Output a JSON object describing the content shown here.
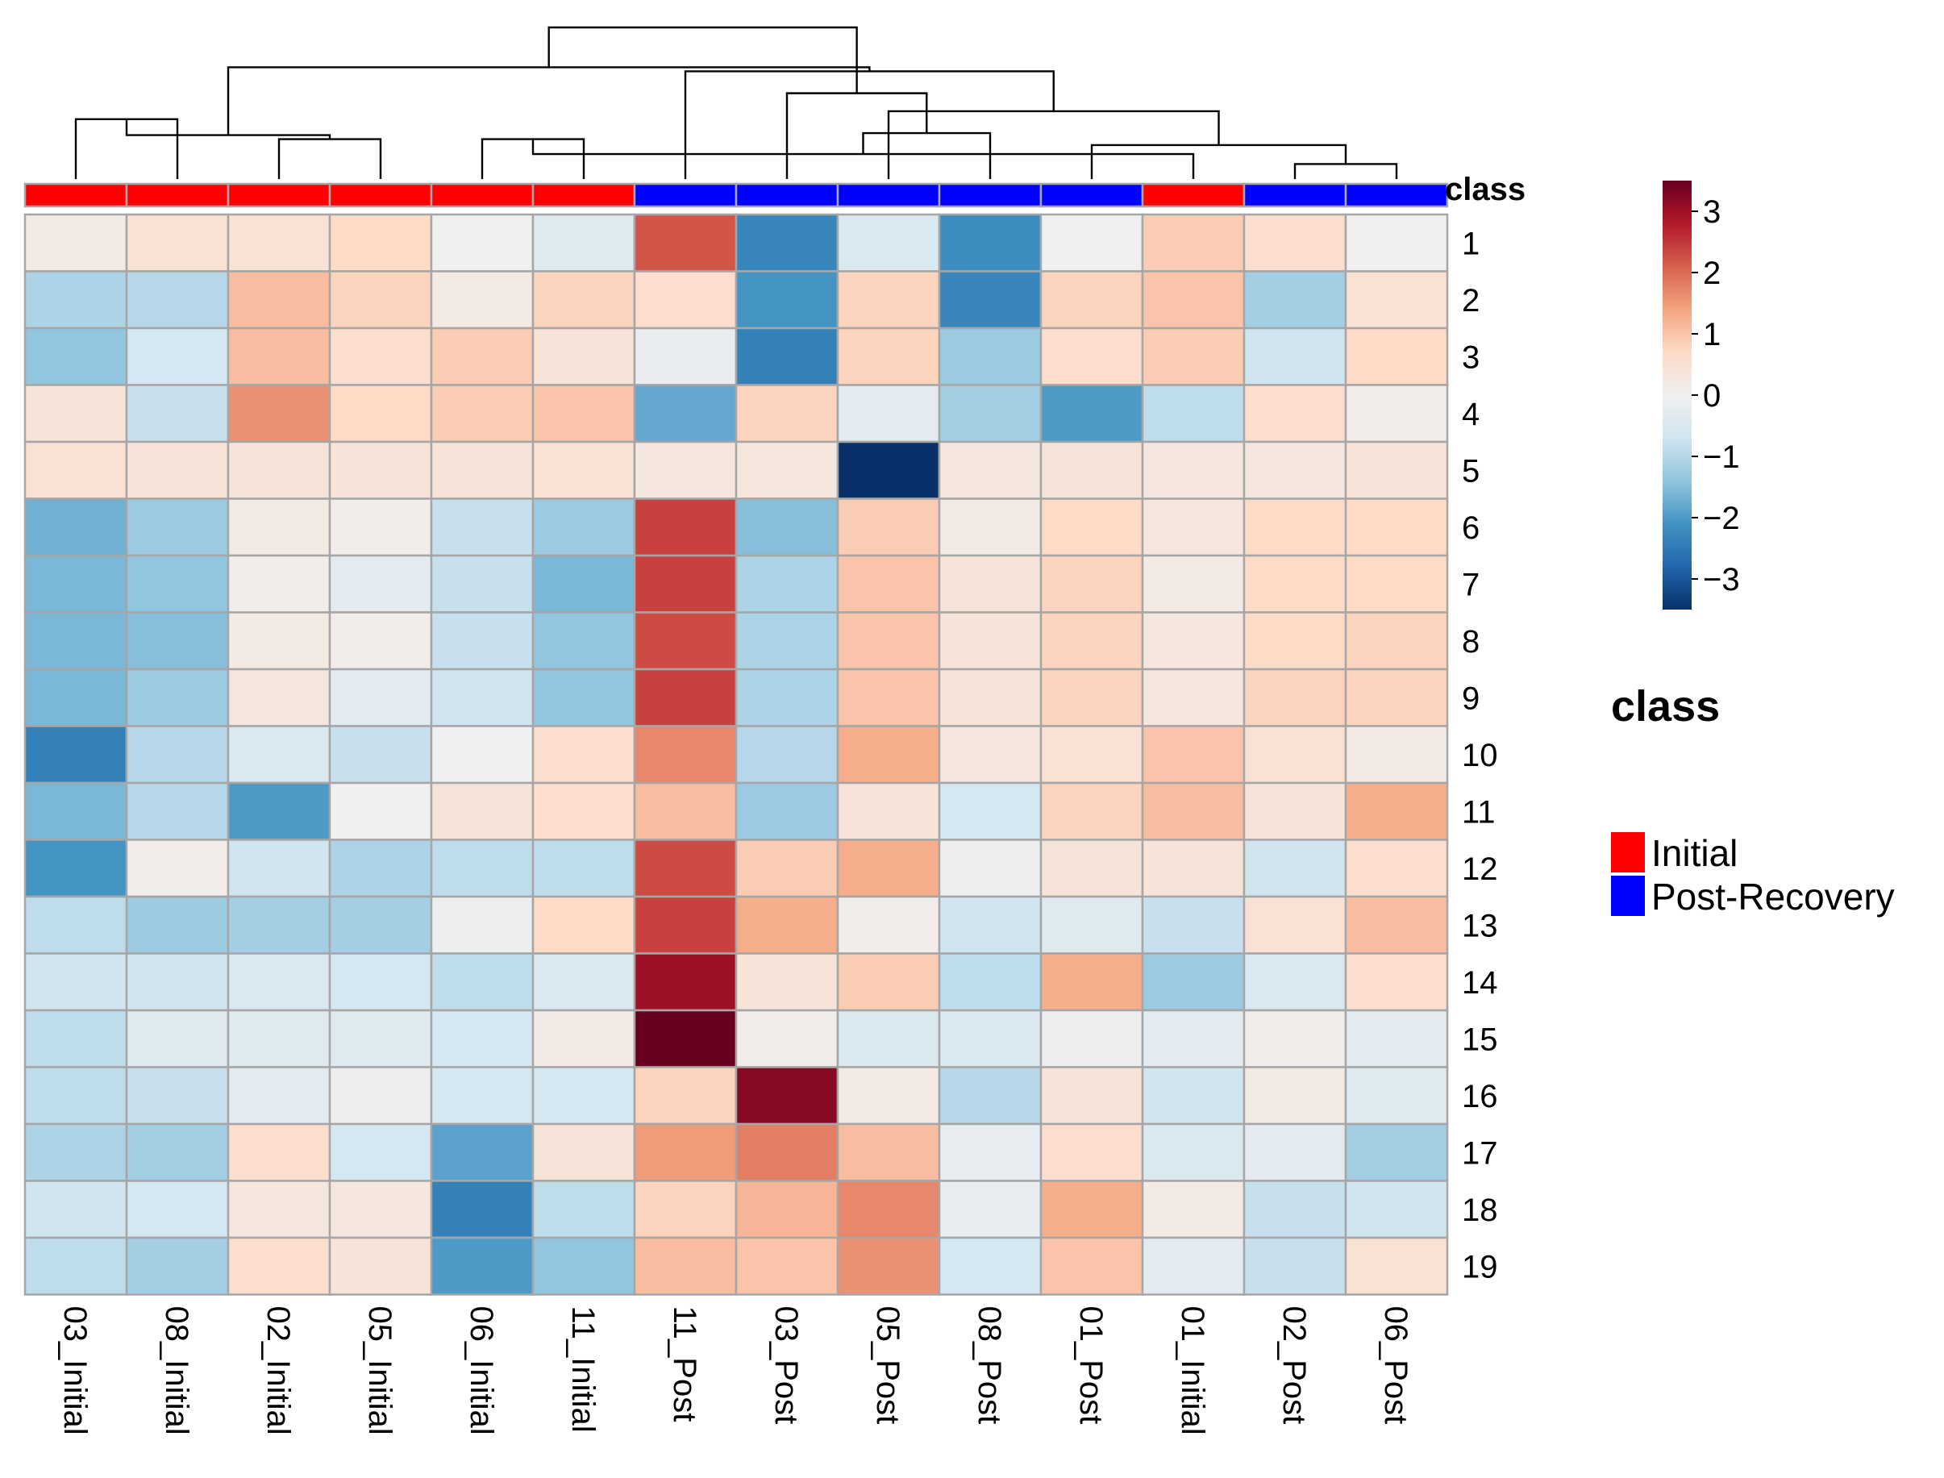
{
  "chart_data": {
    "type": "heatmap",
    "title": "",
    "xlabel": "",
    "ylabel": "",
    "columns": [
      "03_Initial",
      "08_Initial",
      "02_Initial",
      "05_Initial",
      "06_Initial",
      "11_Initial",
      "11_Post",
      "03_Post",
      "05_Post",
      "08_Post",
      "01_Post",
      "01_Initial",
      "02_Post",
      "06_Post"
    ],
    "rows": [
      "1",
      "2",
      "3",
      "4",
      "5",
      "6",
      "7",
      "8",
      "9",
      "10",
      "11",
      "12",
      "13",
      "14",
      "15",
      "16",
      "17",
      "18",
      "19"
    ],
    "column_classes": [
      "Initial",
      "Initial",
      "Initial",
      "Initial",
      "Initial",
      "Initial",
      "Post-Recovery",
      "Post-Recovery",
      "Post-Recovery",
      "Post-Recovery",
      "Post-Recovery",
      "Initial",
      "Post-Recovery",
      "Post-Recovery"
    ],
    "values": [
      [
        0.2,
        0.5,
        0.5,
        0.7,
        0.0,
        -0.4,
        2.2,
        -2.3,
        -0.5,
        -2.2,
        0.0,
        0.9,
        0.6,
        0.0
      ],
      [
        -1.1,
        -1.0,
        1.1,
        0.8,
        0.2,
        0.8,
        0.6,
        -2.1,
        0.8,
        -2.3,
        0.8,
        1.0,
        -1.2,
        0.5
      ],
      [
        -1.4,
        -0.6,
        1.1,
        0.6,
        0.9,
        0.4,
        -0.2,
        -2.4,
        0.8,
        -1.3,
        0.6,
        0.9,
        -0.7,
        0.7
      ],
      [
        0.4,
        -0.8,
        1.6,
        0.7,
        0.9,
        1.0,
        -1.8,
        0.8,
        -0.3,
        -1.2,
        -2.0,
        -0.9,
        0.6,
        0.1
      ],
      [
        0.5,
        0.4,
        0.4,
        0.4,
        0.4,
        0.5,
        0.3,
        0.3,
        -3.5,
        0.3,
        0.4,
        0.3,
        0.3,
        0.4
      ],
      [
        -1.7,
        -1.3,
        0.2,
        0.1,
        -0.8,
        -1.3,
        2.4,
        -1.5,
        0.9,
        0.2,
        0.7,
        0.3,
        0.7,
        0.7
      ],
      [
        -1.6,
        -1.4,
        0.1,
        -0.3,
        -0.8,
        -1.6,
        2.4,
        -1.1,
        1.0,
        0.4,
        0.8,
        0.2,
        0.7,
        0.7
      ],
      [
        -1.6,
        -1.5,
        0.2,
        0.1,
        -0.8,
        -1.4,
        2.3,
        -1.1,
        1.0,
        0.4,
        0.8,
        0.3,
        0.7,
        0.8
      ],
      [
        -1.6,
        -1.3,
        0.3,
        -0.3,
        -0.7,
        -1.4,
        2.4,
        -1.1,
        1.0,
        0.4,
        0.8,
        0.3,
        0.8,
        0.8
      ],
      [
        -2.4,
        -1.0,
        -0.5,
        -0.8,
        0.0,
        0.6,
        1.7,
        -1.0,
        1.3,
        0.3,
        0.5,
        1.0,
        0.5,
        0.2
      ],
      [
        -1.6,
        -1.0,
        -2.0,
        0.0,
        0.4,
        0.6,
        1.1,
        -1.3,
        0.4,
        -0.6,
        0.8,
        1.1,
        0.4,
        1.3
      ],
      [
        -2.1,
        0.1,
        -0.7,
        -1.1,
        -0.9,
        -0.9,
        2.3,
        0.9,
        1.3,
        -0.1,
        0.4,
        0.4,
        -0.7,
        0.6
      ],
      [
        -0.9,
        -1.3,
        -1.2,
        -1.2,
        -0.1,
        0.7,
        2.4,
        1.3,
        0.1,
        -0.7,
        -0.4,
        -0.8,
        0.5,
        1.1
      ],
      [
        -0.7,
        -0.7,
        -0.5,
        -0.6,
        -0.9,
        -0.5,
        3.0,
        0.4,
        0.9,
        -0.9,
        1.3,
        -1.3,
        -0.5,
        0.6
      ],
      [
        -0.9,
        -0.4,
        -0.4,
        -0.4,
        -0.6,
        0.2,
        3.5,
        0.1,
        -0.5,
        -0.5,
        -0.1,
        -0.3,
        0.1,
        -0.3
      ],
      [
        -0.9,
        -0.8,
        -0.3,
        -0.1,
        -0.6,
        -0.6,
        0.8,
        3.2,
        0.2,
        -1.0,
        0.4,
        -0.7,
        0.2,
        -0.4
      ],
      [
        -1.1,
        -1.2,
        0.6,
        -0.6,
        -1.9,
        0.4,
        1.5,
        1.8,
        1.1,
        -0.2,
        0.6,
        -0.5,
        -0.3,
        -1.2
      ],
      [
        -0.7,
        -0.6,
        0.3,
        0.3,
        -2.4,
        -0.9,
        0.8,
        1.2,
        1.7,
        -0.2,
        1.3,
        0.2,
        -0.8,
        -0.7
      ],
      [
        -0.9,
        -1.2,
        0.6,
        0.4,
        -2.0,
        -1.4,
        1.1,
        1.0,
        1.6,
        -0.6,
        1.0,
        -0.3,
        -0.8,
        0.5
      ]
    ],
    "color_scale": {
      "min": -3.5,
      "max": 3.5,
      "ticks": [
        -3,
        -2,
        -1,
        0,
        1,
        2,
        3
      ],
      "tick_labels": [
        "−3",
        "−2",
        "−1",
        "0",
        "1",
        "2",
        "3"
      ],
      "stops": [
        "#08306b",
        "#2166ac",
        "#4393c3",
        "#92c5de",
        "#d1e5f0",
        "#f0f0f0",
        "#fddbc7",
        "#f4a582",
        "#d6604d",
        "#b2182b",
        "#67001f"
      ]
    },
    "class_bar": {
      "label": "class"
    },
    "legend": {
      "title": "class",
      "position": "right",
      "entries": [
        {
          "label": "Initial",
          "color": "#ff0000"
        },
        {
          "label": "Post-Recovery",
          "color": "#0000ff"
        }
      ]
    },
    "dendrogram": {
      "merges": [
        [
          0,
          1
        ],
        [
          2,
          3
        ],
        [
          4,
          5
        ],
        [
          12,
          13
        ],
        [
          11,
          16
        ],
        [
          10,
          17
        ],
        [
          9,
          18
        ],
        [
          8,
          19
        ],
        [
          7,
          20
        ],
        [
          6,
          21
        ],
        [
          15,
          14
        ],
        [
          24,
          23
        ],
        [
          22,
          25
        ]
      ]
    }
  }
}
